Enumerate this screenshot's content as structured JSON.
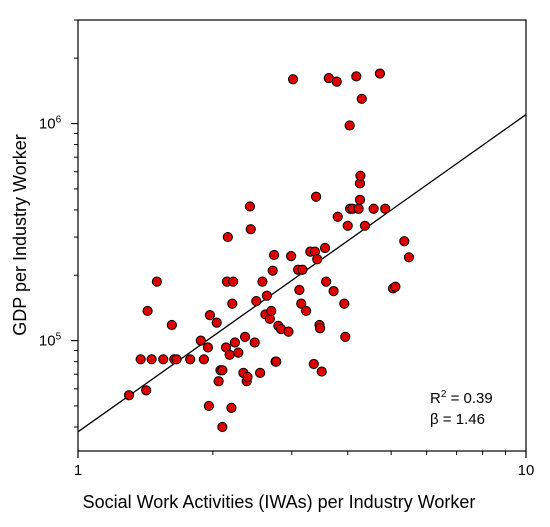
{
  "chart_data": {
    "type": "scatter",
    "xlabel": "Social Work Activities (IWAs) per Industry Worker",
    "ylabel": "GDP per Industry Worker",
    "x_scale": "log",
    "y_scale": "log",
    "xlim": [
      1,
      10
    ],
    "ylim": [
      31000,
      3000000
    ],
    "x_ticks": [
      {
        "value": 1,
        "label": "1"
      },
      {
        "value": 10,
        "label": "10"
      }
    ],
    "y_ticks": [
      {
        "value": 100000,
        "base": "10",
        "exp": "5"
      },
      {
        "value": 1000000,
        "base": "10",
        "exp": "6"
      }
    ],
    "grid": false,
    "legend": "none",
    "marker_color": "#dd0000",
    "marker_edge_color": "#000000",
    "fit_line": {
      "x": [
        1,
        10
      ],
      "y": [
        38000,
        1100000
      ]
    },
    "annotations": {
      "r2_base": "R",
      "r2_sup": "2",
      "r2_value": " = 0.39",
      "beta": "β = 1.46"
    },
    "points": [
      [
        1.3,
        56000
      ],
      [
        1.38,
        82000
      ],
      [
        1.42,
        59000
      ],
      [
        1.43,
        137000
      ],
      [
        1.46,
        82000
      ],
      [
        1.5,
        187000
      ],
      [
        1.55,
        82000
      ],
      [
        1.62,
        118000
      ],
      [
        1.64,
        82000
      ],
      [
        1.66,
        82000
      ],
      [
        1.78,
        82000
      ],
      [
        1.88,
        100000
      ],
      [
        1.91,
        82000
      ],
      [
        1.95,
        93000
      ],
      [
        1.96,
        50000
      ],
      [
        1.97,
        131000
      ],
      [
        2.04,
        121000
      ],
      [
        2.06,
        65000
      ],
      [
        2.08,
        73000
      ],
      [
        2.1,
        73000
      ],
      [
        2.1,
        40000
      ],
      [
        2.14,
        93000
      ],
      [
        2.15,
        187000
      ],
      [
        2.16,
        300000
      ],
      [
        2.18,
        86000
      ],
      [
        2.2,
        49000
      ],
      [
        2.21,
        148000
      ],
      [
        2.22,
        187000
      ],
      [
        2.24,
        98000
      ],
      [
        2.28,
        88000
      ],
      [
        2.34,
        71000
      ],
      [
        2.36,
        104000
      ],
      [
        2.38,
        65000
      ],
      [
        2.39,
        68000
      ],
      [
        2.42,
        415000
      ],
      [
        2.43,
        326000
      ],
      [
        2.48,
        98000
      ],
      [
        2.5,
        152000
      ],
      [
        2.55,
        71000
      ],
      [
        2.58,
        187000
      ],
      [
        2.62,
        132000
      ],
      [
        2.64,
        161000
      ],
      [
        2.68,
        126000
      ],
      [
        2.7,
        137000
      ],
      [
        2.72,
        210000
      ],
      [
        2.74,
        248000
      ],
      [
        2.76,
        80000
      ],
      [
        2.77,
        80000
      ],
      [
        2.8,
        117000
      ],
      [
        2.84,
        113000
      ],
      [
        2.95,
        110000
      ],
      [
        2.99,
        245000
      ],
      [
        3.02,
        1600000
      ],
      [
        3.1,
        212000
      ],
      [
        3.12,
        171000
      ],
      [
        3.15,
        148000
      ],
      [
        3.17,
        212000
      ],
      [
        3.23,
        137000
      ],
      [
        3.3,
        257000
      ],
      [
        3.36,
        78000
      ],
      [
        3.38,
        257000
      ],
      [
        3.4,
        460000
      ],
      [
        3.42,
        237000
      ],
      [
        3.46,
        118000
      ],
      [
        3.47,
        114000
      ],
      [
        3.5,
        72000
      ],
      [
        3.56,
        267000
      ],
      [
        3.58,
        187000
      ],
      [
        3.63,
        1620000
      ],
      [
        3.72,
        169000
      ],
      [
        3.78,
        1560000
      ],
      [
        3.8,
        372000
      ],
      [
        3.93,
        148000
      ],
      [
        3.95,
        104000
      ],
      [
        4.0,
        338000
      ],
      [
        4.04,
        980000
      ],
      [
        4.05,
        405000
      ],
      [
        4.1,
        405000
      ],
      [
        4.18,
        1650000
      ],
      [
        4.23,
        405000
      ],
      [
        4.26,
        530000
      ],
      [
        4.26,
        445000
      ],
      [
        4.27,
        575000
      ],
      [
        4.3,
        1300000
      ],
      [
        4.37,
        338000
      ],
      [
        4.57,
        405000
      ],
      [
        4.72,
        1700000
      ],
      [
        4.85,
        405000
      ],
      [
        5.05,
        174000
      ],
      [
        5.11,
        177000
      ],
      [
        5.35,
        287000
      ],
      [
        5.48,
        242000
      ]
    ]
  }
}
